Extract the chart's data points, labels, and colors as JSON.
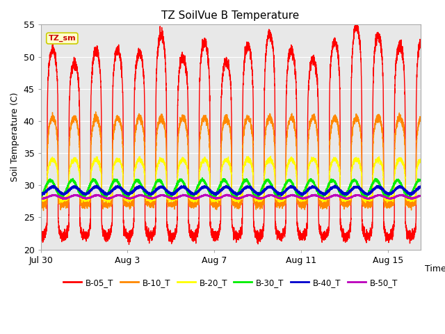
{
  "title": "TZ SoilVue B Temperature",
  "ylabel": "Soil Temperature (C)",
  "xlabel": "Time",
  "ylim": [
    20,
    55
  ],
  "xlim_days": 17.5,
  "bg_color": "#e8e8e8",
  "annotation_text": "TZ_sm",
  "annotation_color": "#cc0000",
  "annotation_bg": "#ffffcc",
  "annotation_border": "#cccc00",
  "series_colors": [
    "#ff0000",
    "#ff8800",
    "#ffff00",
    "#00ee00",
    "#0000cc",
    "#bb00bb"
  ],
  "series_labels": [
    "B-05_T",
    "B-10_T",
    "B-20_T",
    "B-30_T",
    "B-40_T",
    "B-50_T"
  ],
  "series_lw": [
    1.0,
    1.0,
    1.0,
    1.5,
    1.8,
    1.5
  ],
  "tick_labels_x": [
    "Jul 30",
    "Aug 3",
    "Aug 7",
    "Aug 11",
    "Aug 15"
  ],
  "tick_positions_x": [
    0,
    4,
    8,
    12,
    16
  ],
  "tick_labels_y": [
    "20",
    "25",
    "30",
    "35",
    "40",
    "45",
    "50",
    "55"
  ],
  "tick_positions_y": [
    20,
    25,
    30,
    35,
    40,
    45,
    50,
    55
  ]
}
